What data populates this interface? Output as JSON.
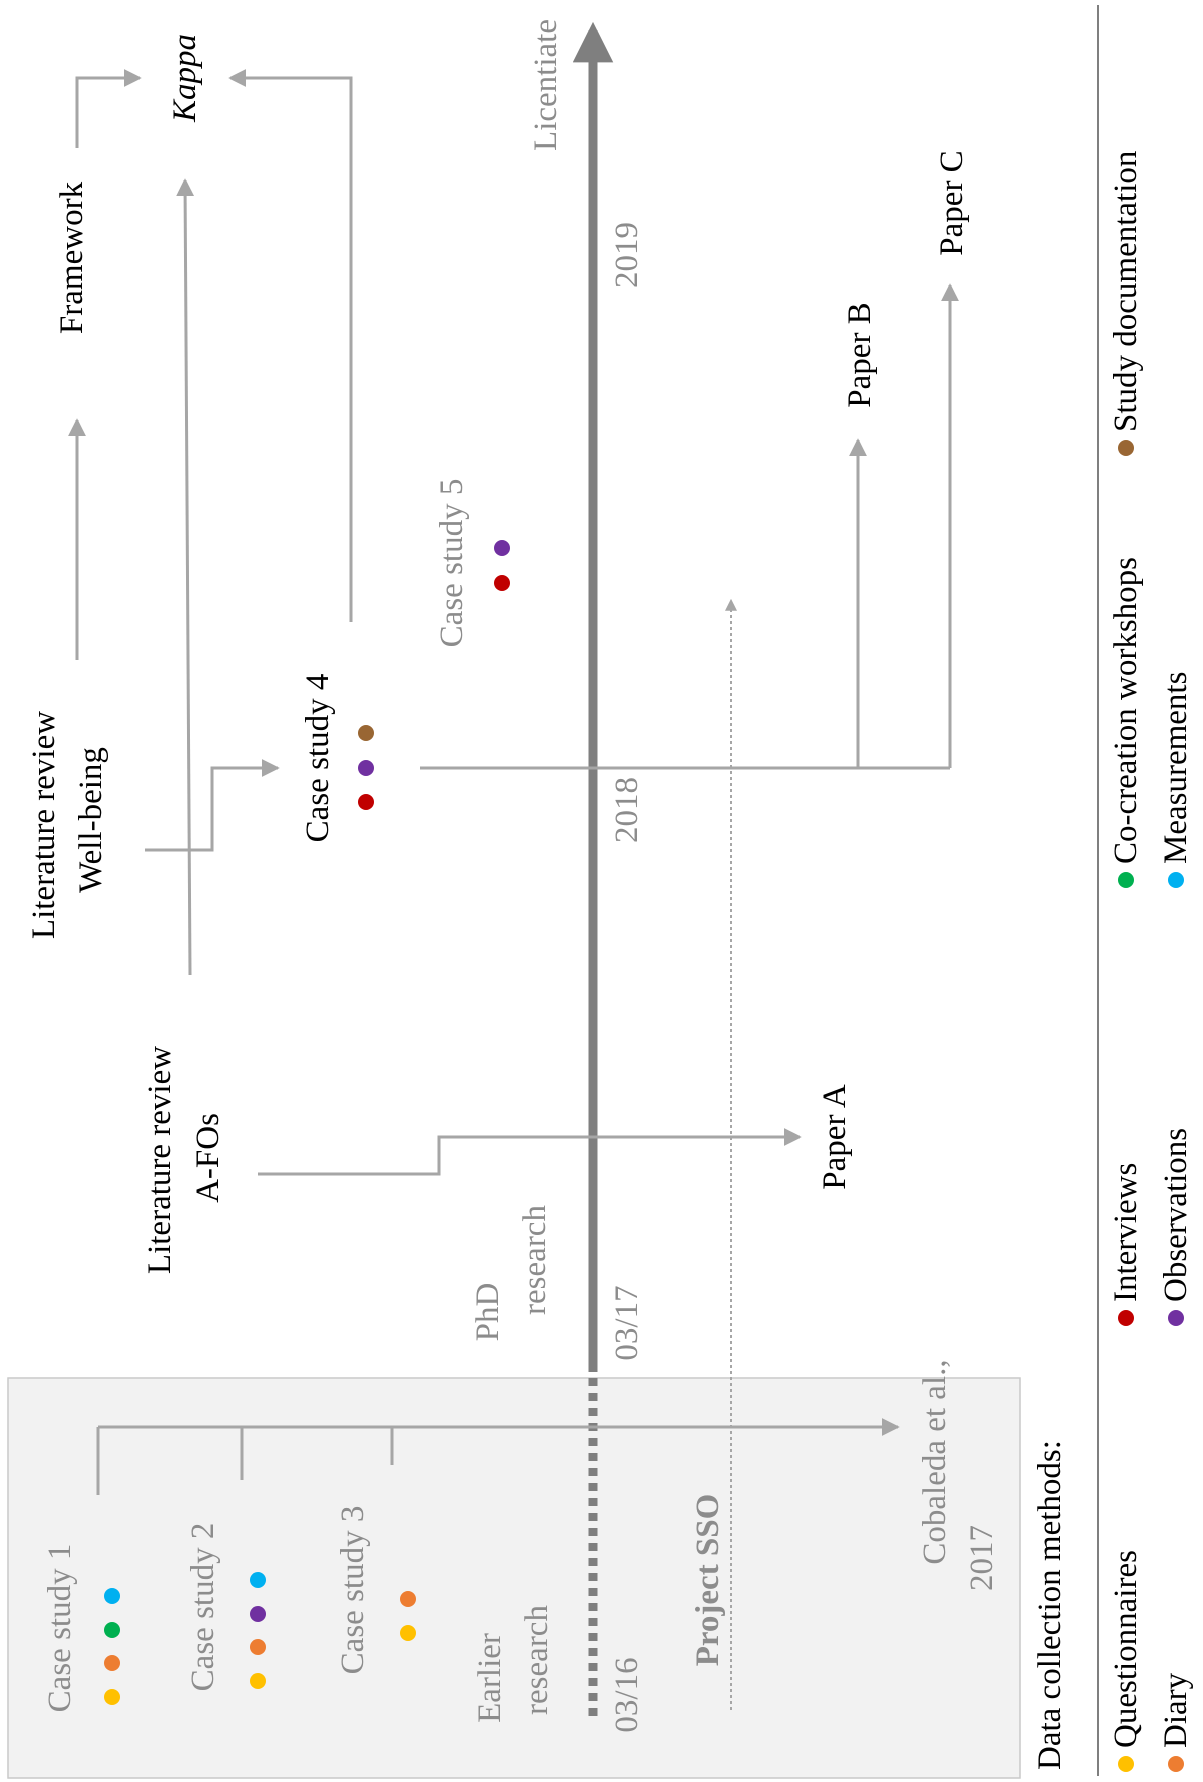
{
  "timeline": {
    "licentiate": "Licentiate",
    "years": {
      "y2019": "2019",
      "y2018": "2018"
    },
    "start_phd": "03/17",
    "start_early": "03/16",
    "phd_line1": "PhD",
    "phd_line2": "research",
    "earlier_line1": "Earlier",
    "earlier_line2": "research",
    "project": "Project SSO"
  },
  "nodes": {
    "kappa": "Kappa",
    "framework": "Framework",
    "paper_a": "Paper A",
    "paper_b": "Paper B",
    "paper_c": "Paper C",
    "lit_wb_line1": "Literature review",
    "lit_wb_line2": "Well-being",
    "lit_afo_line1": "Literature review",
    "lit_afo_line2": "A-FOs",
    "case4": "Case study 4",
    "case5": "Case study 5",
    "case1": "Case study 1",
    "case2": "Case study 2",
    "case3": "Case study 3",
    "cobaleda_line1": "Cobaleda et al.,",
    "cobaleda_line2": "2017"
  },
  "legend": {
    "title": "Data collection methods:",
    "items": [
      {
        "label": "Questionnaires",
        "color": "#ffc000"
      },
      {
        "label": "Diary",
        "color": "#ed7d31"
      },
      {
        "label": "Interviews",
        "color": "#c00000"
      },
      {
        "label": "Observations",
        "color": "#7030a0"
      },
      {
        "label": "Co-creation workshops",
        "color": "#00b050"
      },
      {
        "label": "Measurements",
        "color": "#00b0f0"
      },
      {
        "label": "Study documentation",
        "color": "#996633"
      }
    ]
  }
}
